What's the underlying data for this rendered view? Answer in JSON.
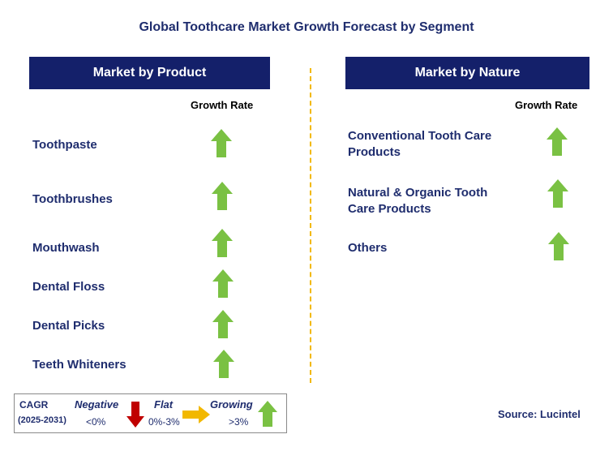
{
  "title": "Global Toothcare Market Growth Forecast by Segment",
  "left_panel": {
    "header": "Market by Product",
    "growth_label": "Growth Rate",
    "items": [
      {
        "label": "Toothpaste",
        "trend": "growing"
      },
      {
        "label": "Toothbrushes",
        "trend": "growing"
      },
      {
        "label": "Mouthwash",
        "trend": "growing"
      },
      {
        "label": "Dental Floss",
        "trend": "growing"
      },
      {
        "label": "Dental Picks",
        "trend": "growing"
      },
      {
        "label": "Teeth Whiteners",
        "trend": "growing"
      }
    ]
  },
  "right_panel": {
    "header": "Market by Nature",
    "growth_label": "Growth Rate",
    "items": [
      {
        "label_line1": "Conventional Tooth Care",
        "label_line2": "Products",
        "trend": "growing"
      },
      {
        "label_line1": "Natural & Organic Tooth",
        "label_line2": "Care Products",
        "trend": "growing"
      },
      {
        "label_line1": "Others",
        "label_line2": "",
        "trend": "growing"
      }
    ]
  },
  "legend": {
    "cagr": "CAGR",
    "period": "(2025-2031)",
    "negative": {
      "label": "Negative",
      "range": "<0%"
    },
    "flat": {
      "label": "Flat",
      "range": "0%-3%"
    },
    "growing": {
      "label": "Growing",
      "range": ">3%"
    }
  },
  "source": "Source: Lucintel",
  "colors": {
    "header_bg": "#14206a",
    "text": "#1f2d6e",
    "up_arrow": "#7ac143",
    "down_arrow": "#c00000",
    "flat_arrow": "#f2b800",
    "divider": "#f2b800"
  }
}
